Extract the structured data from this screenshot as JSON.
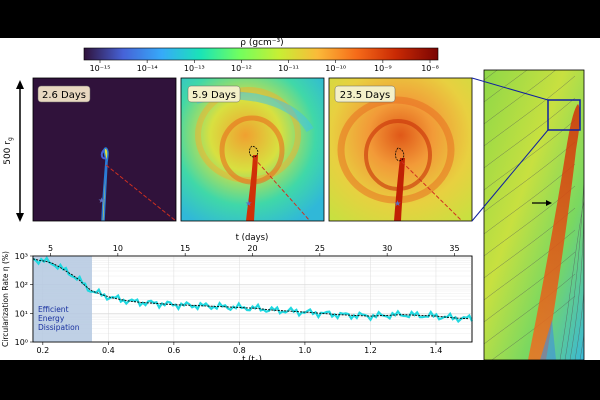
{
  "colorbar": {
    "label": "ρ (gcm⁻³)",
    "ticks": [
      "10⁻¹⁵",
      "10⁻¹⁴",
      "10⁻¹³",
      "10⁻¹²",
      "10⁻¹¹",
      "10⁻¹⁰",
      "10⁻⁹",
      "10⁻⁸"
    ],
    "colormap": [
      "#30123b",
      "#4662d7",
      "#36aaf9",
      "#1ae4b6",
      "#72fe5e",
      "#c7ef34",
      "#faba39",
      "#f66b19",
      "#ca2a04",
      "#7a0403"
    ]
  },
  "scale_label": "500 r",
  "scale_label_sub": "g",
  "panels": [
    {
      "label": "2.6 Days"
    },
    {
      "label": "5.9 Days"
    },
    {
      "label": "23.5 Days"
    }
  ],
  "chart_data": {
    "type": "line",
    "xlabel": "t (t",
    "xlabel_sub": "0",
    "xlabel_end": ")",
    "top_xlabel": "t (days)",
    "ylabel": "Circularization Rate η (%)",
    "xlim": [
      0.17,
      1.51
    ],
    "ylim_log10": [
      0,
      3
    ],
    "x_ticks": [
      "0.2",
      "0.4",
      "0.6",
      "0.8",
      "1.0",
      "1.2",
      "1.4"
    ],
    "top_ticks": [
      "5",
      "10",
      "15",
      "20",
      "25",
      "30",
      "35"
    ],
    "y_ticks": [
      "10⁰",
      "10¹",
      "10²",
      "10³"
    ],
    "shaded_region": {
      "x": [
        0.17,
        0.35
      ],
      "label_lines": [
        "Efficient",
        "Energy",
        "Dissipation"
      ]
    },
    "series": [
      {
        "x": [
          0.17,
          0.19,
          0.21,
          0.23,
          0.25,
          0.27,
          0.29,
          0.31,
          0.33,
          0.35,
          0.38,
          0.41,
          0.44,
          0.47,
          0.5,
          0.55,
          0.6,
          0.65,
          0.7,
          0.75,
          0.8,
          0.85,
          0.9,
          0.95,
          1.0,
          1.05,
          1.1,
          1.15,
          1.2,
          1.25,
          1.3,
          1.35,
          1.4,
          1.45,
          1.5
        ],
        "y": [
          800,
          700,
          650,
          550,
          420,
          300,
          220,
          150,
          90,
          60,
          45,
          35,
          30,
          26,
          24,
          22,
          20,
          19,
          18,
          17,
          16,
          15,
          13,
          12,
          11,
          10,
          9,
          8.5,
          8,
          8.5,
          9,
          8.5,
          8,
          7,
          6.5
        ]
      }
    ]
  }
}
